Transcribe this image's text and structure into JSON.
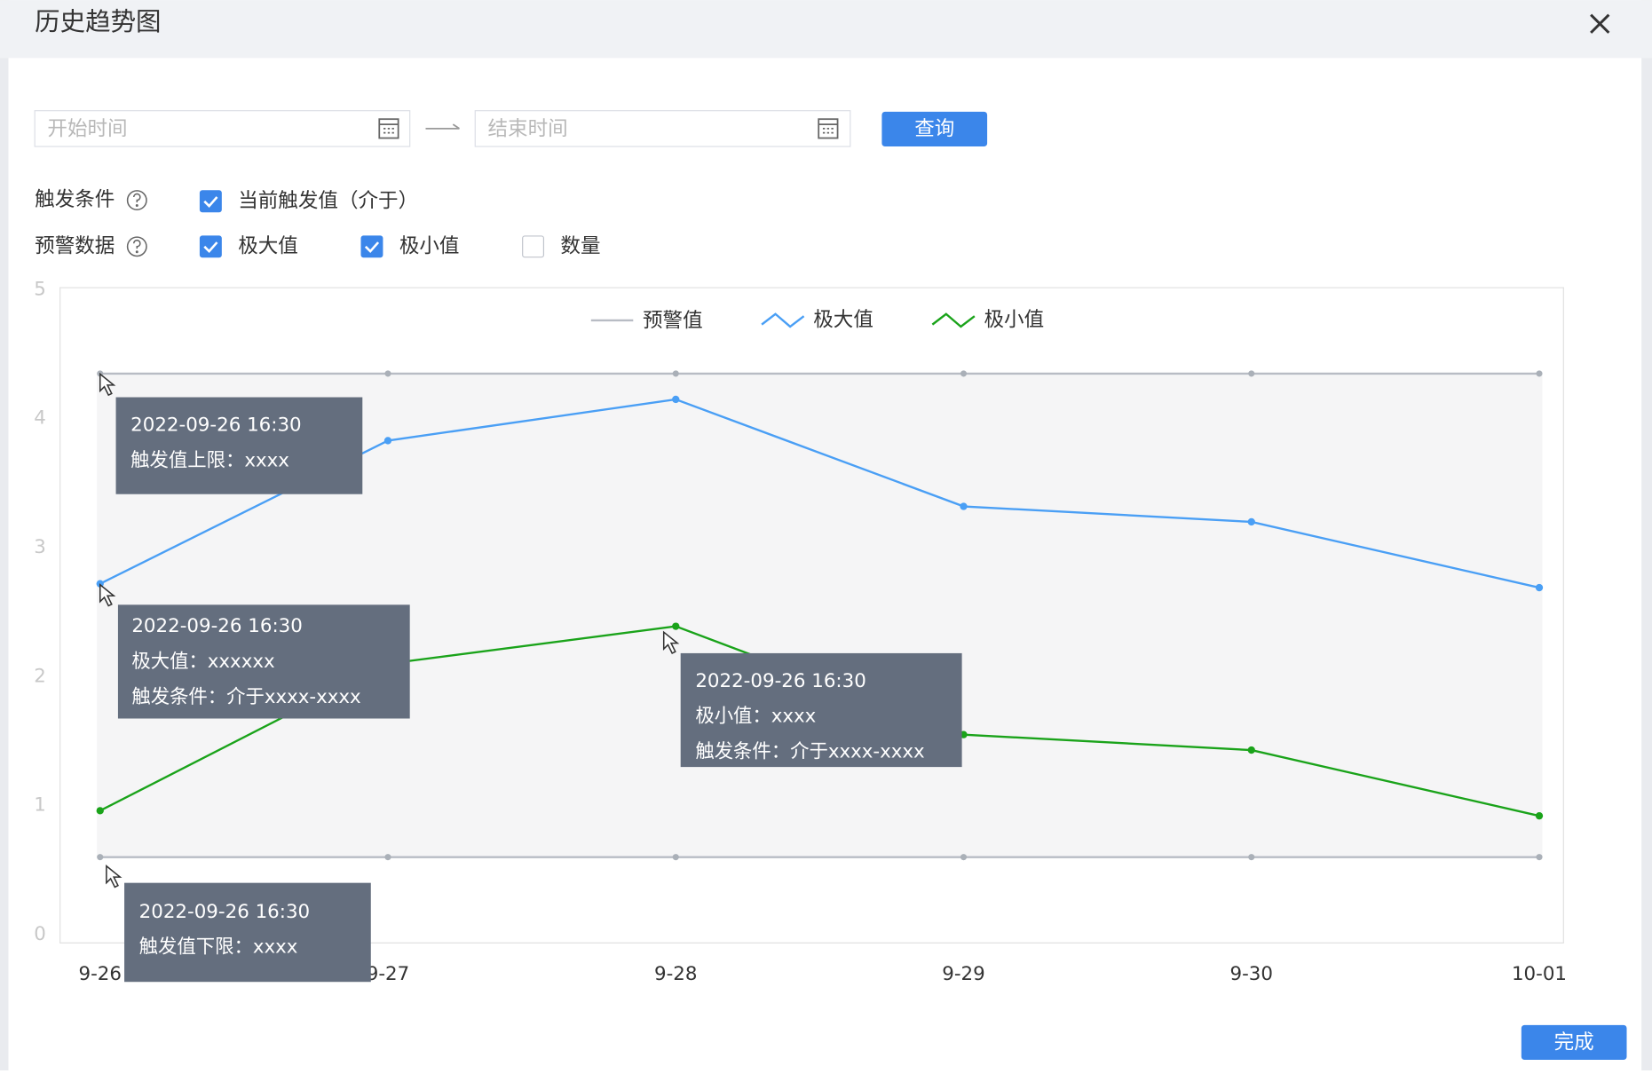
{
  "dialog": {
    "title": "历史趋势图"
  },
  "filters": {
    "start_placeholder": "开始时间",
    "end_placeholder": "结束时间",
    "query_button": "查询"
  },
  "trigger_condition": {
    "label": "触发条件",
    "options": [
      {
        "label": "当前触发值（介于）",
        "checked": true
      }
    ]
  },
  "alert_data": {
    "label": "预警数据",
    "options": [
      {
        "label": "极大值",
        "checked": true
      },
      {
        "label": "极小值",
        "checked": true
      },
      {
        "label": "数量",
        "checked": false
      }
    ]
  },
  "chart_data": {
    "type": "line",
    "categories": [
      "9-26",
      "9-27",
      "9-28",
      "9-29",
      "9-30",
      "10-01"
    ],
    "ylim": [
      0,
      5
    ],
    "yticks": [
      0,
      1,
      2,
      3,
      4,
      5
    ],
    "threshold": {
      "name": "预警值",
      "color": "#b8bcc4",
      "upper": 4.35,
      "lower": 0.6
    },
    "series": [
      {
        "name": "极大值",
        "color": "#4a9ff5",
        "values": [
          2.72,
          3.83,
          4.15,
          3.32,
          3.2,
          2.69
        ]
      },
      {
        "name": "极小值",
        "color": "#1aa31a",
        "values": [
          0.96,
          2.1,
          2.39,
          1.55,
          1.43,
          0.92
        ]
      }
    ],
    "tooltips": [
      {
        "lines": [
          "2022-09-26 16:30",
          "触发值上限：xxxx"
        ]
      },
      {
        "lines": [
          "2022-09-26 16:30",
          "极大值：xxxxxx",
          "触发条件：介于xxxx-xxxx"
        ]
      },
      {
        "lines": [
          "2022-09-26 16:30",
          "极小值：xxxx",
          "触发条件：介于xxxx-xxxx"
        ]
      },
      {
        "lines": [
          "2022-09-26 16:30",
          "触发值下限：xxxx"
        ]
      }
    ]
  },
  "done_button": "完成"
}
